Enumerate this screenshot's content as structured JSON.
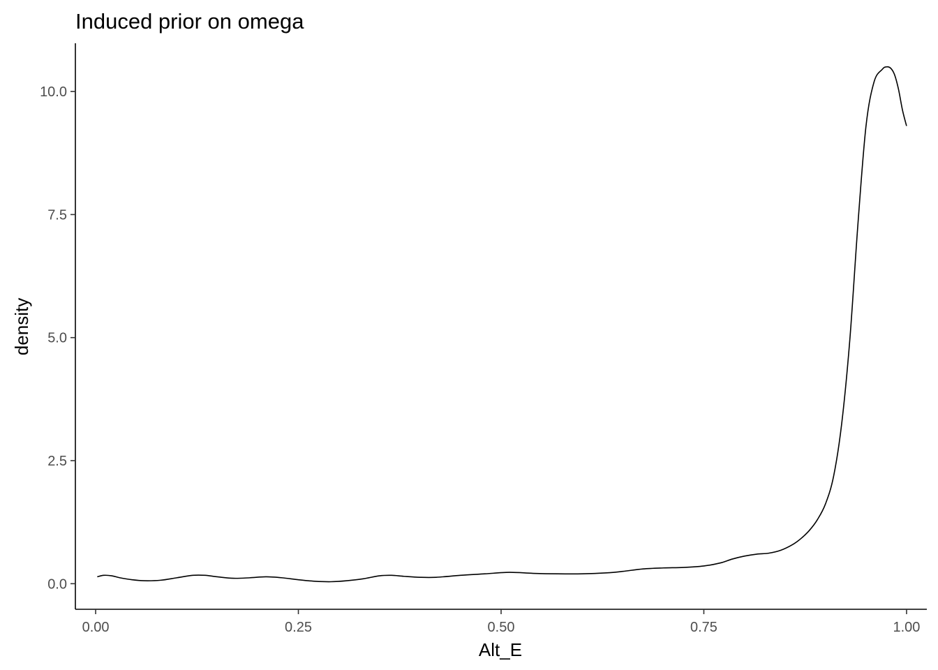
{
  "chart_data": {
    "type": "line",
    "title": "Induced prior on omega",
    "xlabel": "Alt_E",
    "ylabel": "density",
    "xlim": [
      -0.025,
      1.025
    ],
    "ylim": [
      -0.52,
      10.98
    ],
    "x_ticks": [
      0.0,
      0.25,
      0.5,
      0.75,
      1.0
    ],
    "x_tick_labels": [
      "0.00",
      "0.25",
      "0.50",
      "0.75",
      "1.00"
    ],
    "y_ticks": [
      0.0,
      2.5,
      5.0,
      7.5,
      10.0
    ],
    "y_tick_labels": [
      "0.0",
      "2.5",
      "5.0",
      "7.5",
      "10.0"
    ],
    "grid": false,
    "legend": "none",
    "series": [
      {
        "color": "#000000",
        "x": [
          0.002,
          0.01,
          0.02,
          0.03,
          0.045,
          0.06,
          0.08,
          0.1,
          0.12,
          0.135,
          0.15,
          0.17,
          0.19,
          0.21,
          0.23,
          0.25,
          0.27,
          0.29,
          0.31,
          0.33,
          0.35,
          0.365,
          0.38,
          0.4,
          0.42,
          0.45,
          0.48,
          0.51,
          0.54,
          0.57,
          0.6,
          0.63,
          0.65,
          0.675,
          0.7,
          0.725,
          0.75,
          0.77,
          0.785,
          0.8,
          0.815,
          0.83,
          0.845,
          0.86,
          0.87,
          0.88,
          0.89,
          0.9,
          0.91,
          0.92,
          0.93,
          0.94,
          0.95,
          0.96,
          0.97,
          0.975,
          0.98,
          0.985,
          0.99,
          0.995,
          1.0
        ],
        "y": [
          0.14,
          0.17,
          0.16,
          0.12,
          0.08,
          0.06,
          0.07,
          0.12,
          0.17,
          0.17,
          0.14,
          0.11,
          0.12,
          0.14,
          0.12,
          0.08,
          0.05,
          0.04,
          0.06,
          0.1,
          0.16,
          0.17,
          0.15,
          0.13,
          0.13,
          0.17,
          0.2,
          0.23,
          0.21,
          0.2,
          0.2,
          0.22,
          0.25,
          0.3,
          0.32,
          0.33,
          0.36,
          0.42,
          0.5,
          0.56,
          0.6,
          0.62,
          0.68,
          0.8,
          0.92,
          1.08,
          1.3,
          1.62,
          2.18,
          3.25,
          4.95,
          7.3,
          9.3,
          10.2,
          10.45,
          10.5,
          10.48,
          10.35,
          10.05,
          9.62,
          9.3
        ]
      }
    ]
  }
}
